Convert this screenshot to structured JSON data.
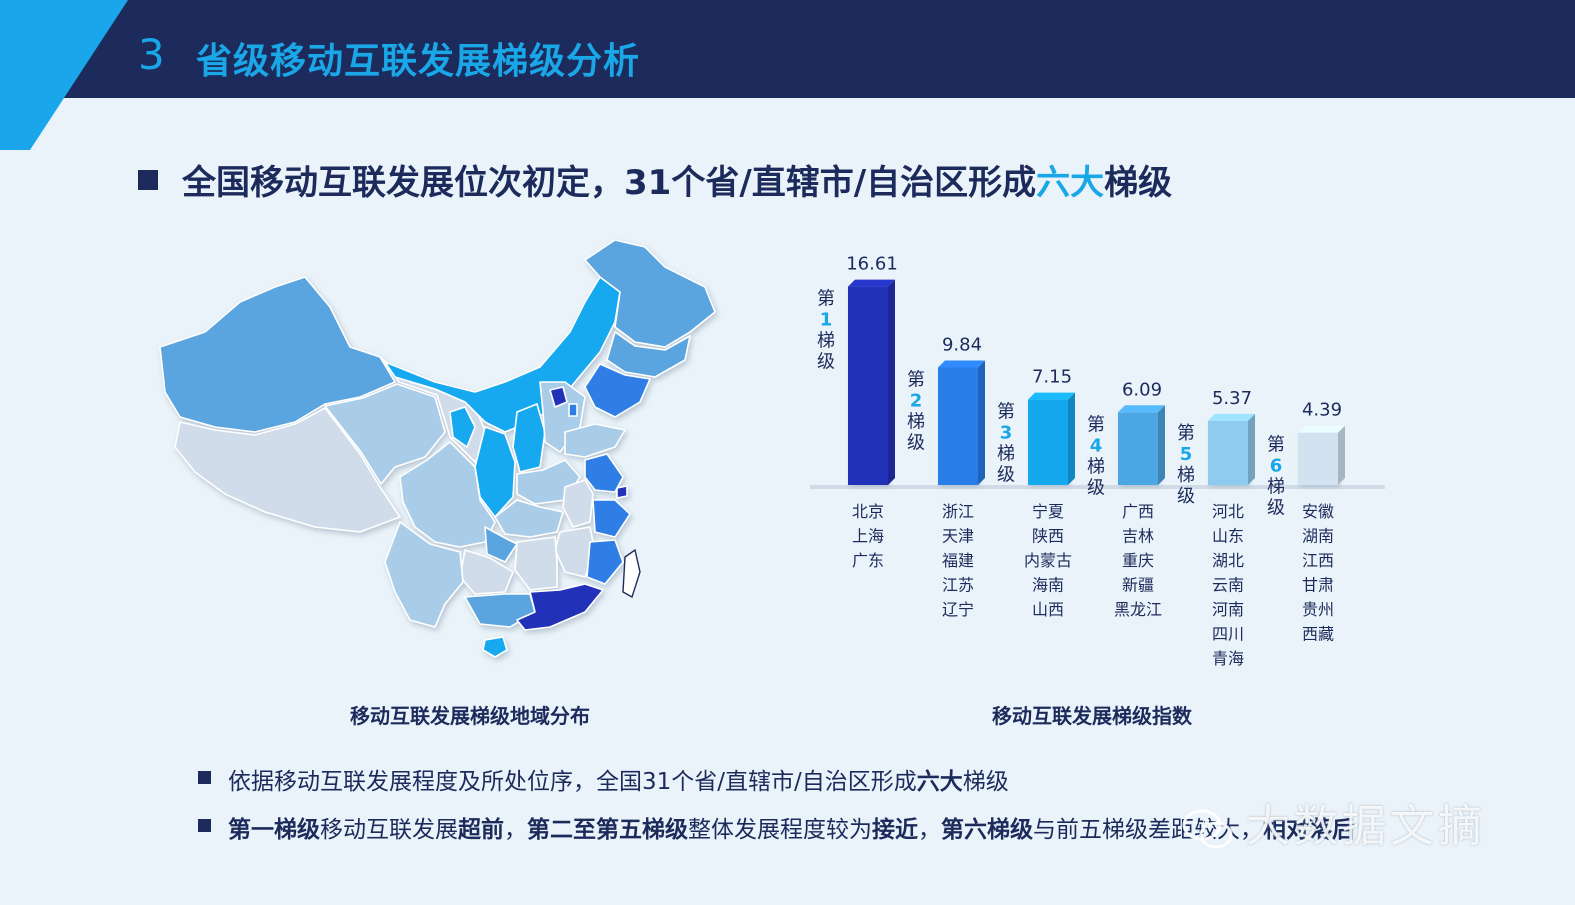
{
  "header": {
    "section_number": "3",
    "title": "省级移动互联发展梯级分析"
  },
  "headline": {
    "prefix": "全国移动互联发展位次初定，31个省/直辖市/自治区形成",
    "highlight": "六大",
    "suffix": "梯级"
  },
  "map": {
    "caption": "移动互联发展梯级地域分布",
    "colors": [
      "#2432b8",
      "#2d7ee6",
      "#19a9ef",
      "#5aa5df",
      "#a9cde8",
      "#d1dcea"
    ]
  },
  "chart_caption": "移动互联发展梯级指数",
  "chart_data": {
    "type": "bar",
    "categories": [
      "第1梯级",
      "第2梯级",
      "第3梯级",
      "第4梯级",
      "第5梯级",
      "第6梯级"
    ],
    "values": [
      16.61,
      9.84,
      7.15,
      6.09,
      5.37,
      4.39
    ],
    "value_labels": [
      "16.61",
      "9.84",
      "7.15",
      "6.09",
      "5.37",
      "4.39"
    ],
    "tier_labels": [
      {
        "pre": "第",
        "num": "1",
        "post": "梯级"
      },
      {
        "pre": "第",
        "num": "2",
        "post": "梯级"
      },
      {
        "pre": "第",
        "num": "3",
        "post": "梯级"
      },
      {
        "pre": "第",
        "num": "4",
        "post": "梯级"
      },
      {
        "pre": "第",
        "num": "5",
        "post": "梯级"
      },
      {
        "pre": "第",
        "num": "6",
        "post": "梯级"
      }
    ],
    "provinces": [
      [
        "北京",
        "上海",
        "广东"
      ],
      [
        "浙江",
        "天津",
        "福建",
        "江苏",
        "辽宁"
      ],
      [
        "宁夏",
        "陕西",
        "内蒙古",
        "海南",
        "山西"
      ],
      [
        "广西",
        "吉林",
        "重庆",
        "新疆",
        "黑龙江"
      ],
      [
        "河北",
        "山东",
        "湖北",
        "云南",
        "河南",
        "四川",
        "青海"
      ],
      [
        "安徽",
        "湖南",
        "江西",
        "甘肃",
        "贵州",
        "西藏"
      ]
    ],
    "colors": [
      "#2331b8",
      "#2a7ce8",
      "#17a8ee",
      "#4ea6e4",
      "#8fcbef",
      "#d3e2f0"
    ],
    "ylim": [
      0,
      18
    ]
  },
  "bullets": [
    {
      "parts": [
        {
          "t": "依据移动互联发展程度及所处位序，全国31个省/直辖市/自治区形成",
          "b": false
        },
        {
          "t": "六大",
          "b": true
        },
        {
          "t": "梯级",
          "b": false
        }
      ]
    },
    {
      "parts": [
        {
          "t": "第一梯级",
          "b": true
        },
        {
          "t": "移动互联发展",
          "b": false
        },
        {
          "t": "超前",
          "b": true
        },
        {
          "t": "，",
          "b": false
        },
        {
          "t": "第二至第五梯级",
          "b": true
        },
        {
          "t": "整体发展程度较为",
          "b": false
        },
        {
          "t": "接近",
          "b": true
        },
        {
          "t": "，",
          "b": false
        },
        {
          "t": "第六梯级",
          "b": true
        },
        {
          "t": "与前五梯级差距较大，",
          "b": false
        },
        {
          "t": "相对落后",
          "b": true
        }
      ]
    }
  ],
  "watermark": "大数据文摘"
}
